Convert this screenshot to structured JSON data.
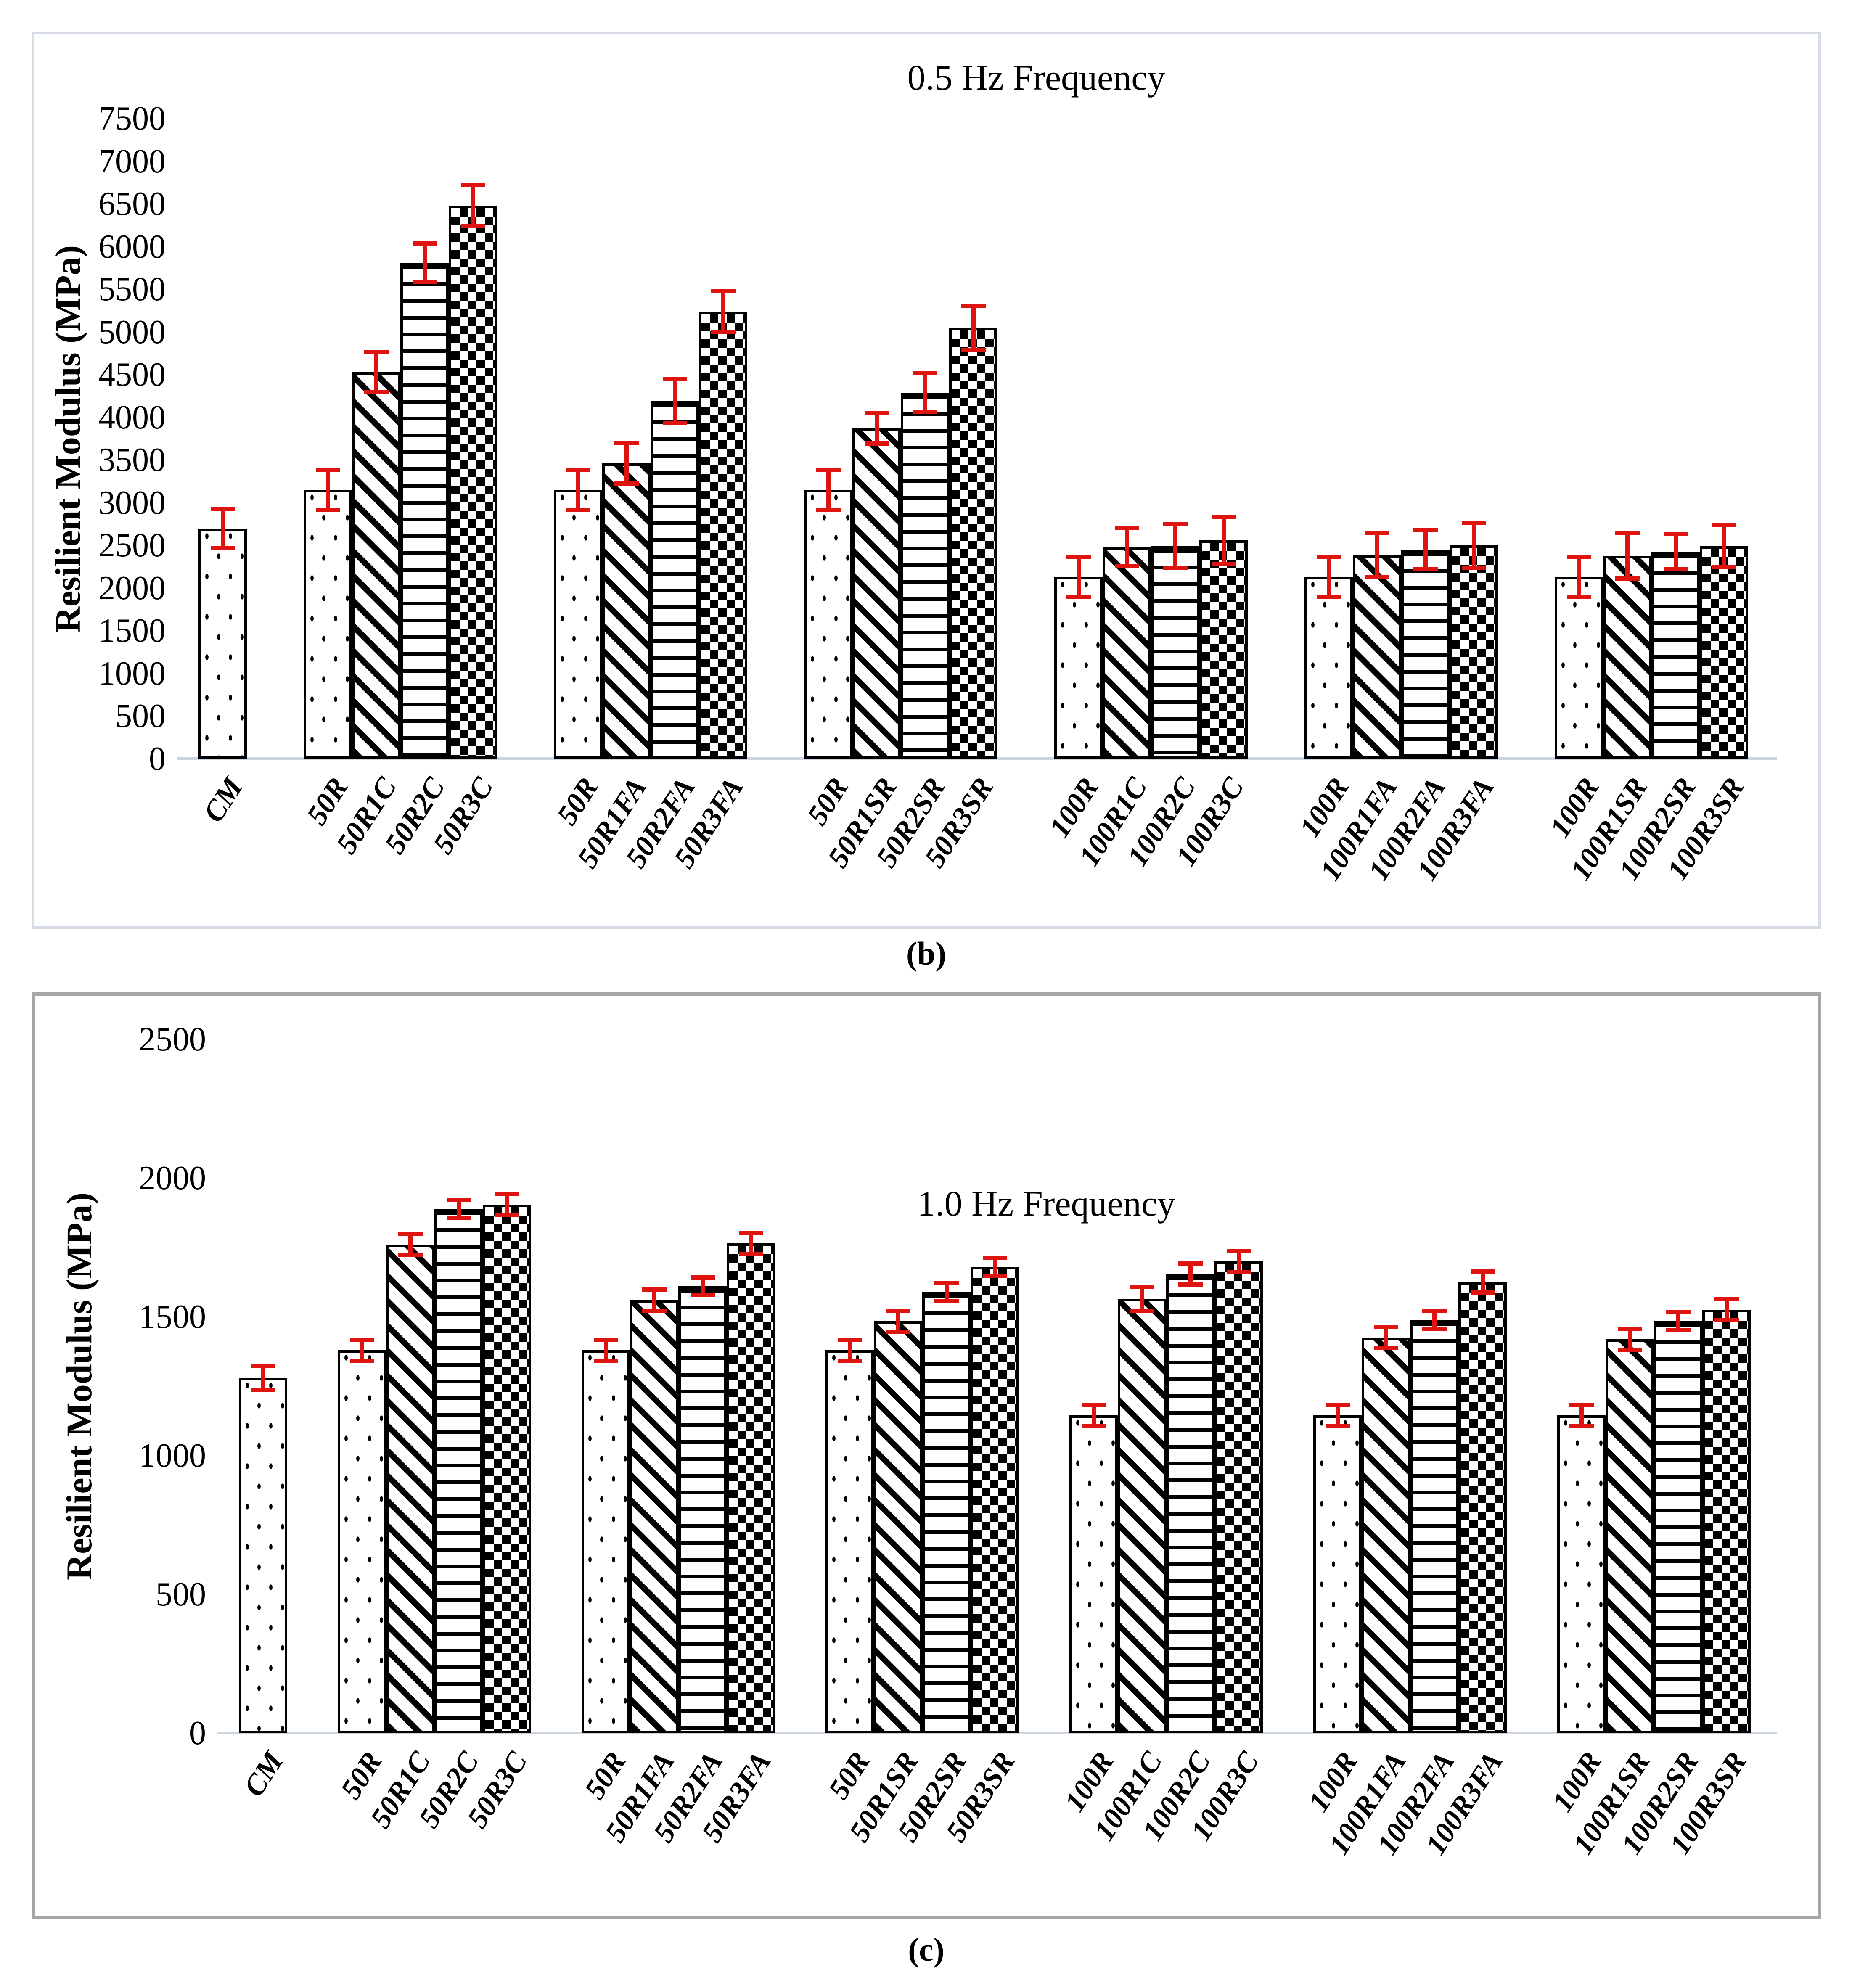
{
  "figure": {
    "error_bar_color": "#df1310",
    "panel_border_colors": [
      "#d5dce6",
      "#a6a6a6"
    ],
    "panels": [
      {
        "caption": "(b)"
      },
      {
        "caption": "(c)"
      }
    ]
  },
  "chart_data": [
    {
      "type": "bar",
      "title": "0.5 Hz Frequency",
      "xlabel": "",
      "ylabel": "Resilient Modulus (MPa)",
      "ylim": [
        0,
        7500
      ],
      "ytick_step": 500,
      "grid": false,
      "legend": false,
      "error_bars": true,
      "bar_patterns": [
        "dotted",
        "diagonal-stripe",
        "horizontal-stripe",
        "checkerboard"
      ],
      "groups": [
        {
          "labels": [
            "CM"
          ],
          "values": [
            2700
          ],
          "errors": [
            250
          ]
        },
        {
          "labels": [
            "50R",
            "50R1C",
            "50R2C",
            "50R3C"
          ],
          "values": [
            3150,
            4530,
            5810,
            6480
          ],
          "errors": [
            260,
            255,
            250,
            265
          ]
        },
        {
          "labels": [
            "50R",
            "50R1FA",
            "50R2FA",
            "50R3FA"
          ],
          "values": [
            3150,
            3460,
            4190,
            5240
          ],
          "errors": [
            260,
            260,
            280,
            265
          ]
        },
        {
          "labels": [
            "50R",
            "50R1SR",
            "50R2SR",
            "50R3SR"
          ],
          "values": [
            3150,
            3870,
            4290,
            5050
          ],
          "errors": [
            260,
            200,
            250,
            280
          ]
        },
        {
          "labels": [
            "100R",
            "100R1C",
            "100R2C",
            "100R3C"
          ],
          "values": [
            2130,
            2480,
            2490,
            2560
          ],
          "errors": [
            255,
            250,
            280,
            300
          ]
        },
        {
          "labels": [
            "100R",
            "100R1FA",
            "100R2FA",
            "100R3FA"
          ],
          "values": [
            2130,
            2390,
            2450,
            2500
          ],
          "errors": [
            255,
            280,
            250,
            290
          ]
        },
        {
          "labels": [
            "100R",
            "100R1SR",
            "100R2SR",
            "100R3SR"
          ],
          "values": [
            2130,
            2380,
            2430,
            2490
          ],
          "errors": [
            255,
            290,
            230,
            270
          ]
        }
      ]
    },
    {
      "type": "bar",
      "title": "1.0 Hz Frequency",
      "xlabel": "",
      "ylabel": "Resilient Modulus (MPa)",
      "ylim": [
        0,
        2500
      ],
      "ytick_step": 500,
      "grid": false,
      "legend": false,
      "error_bars": true,
      "bar_patterns": [
        "dotted",
        "diagonal-stripe",
        "horizontal-stripe",
        "checkerboard"
      ],
      "groups": [
        {
          "labels": [
            "CM"
          ],
          "values": [
            1280
          ],
          "errors": [
            50
          ]
        },
        {
          "labels": [
            "50R",
            "50R1C",
            "50R2C",
            "50R3C"
          ],
          "values": [
            1380,
            1760,
            1890,
            1905
          ],
          "errors": [
            45,
            45,
            40,
            45
          ]
        },
        {
          "labels": [
            "50R",
            "50R1FA",
            "50R2FA",
            "50R3FA"
          ],
          "values": [
            1380,
            1560,
            1610,
            1765
          ],
          "errors": [
            45,
            45,
            40,
            45
          ]
        },
        {
          "labels": [
            "50R",
            "50R1SR",
            "50R2SR",
            "50R3SR"
          ],
          "values": [
            1380,
            1485,
            1590,
            1680
          ],
          "errors": [
            45,
            45,
            40,
            40
          ]
        },
        {
          "labels": [
            "100R",
            "100R1C",
            "100R2C",
            "100R3C"
          ],
          "values": [
            1145,
            1565,
            1655,
            1700
          ],
          "errors": [
            45,
            50,
            45,
            45
          ]
        },
        {
          "labels": [
            "100R",
            "100R1FA",
            "100R2FA",
            "100R3FA"
          ],
          "values": [
            1145,
            1425,
            1490,
            1625
          ],
          "errors": [
            45,
            45,
            40,
            45
          ]
        },
        {
          "labels": [
            "100R",
            "100R1SR",
            "100R2SR",
            "100R3SR"
          ],
          "values": [
            1145,
            1420,
            1485,
            1525
          ],
          "errors": [
            45,
            45,
            40,
            45
          ]
        }
      ]
    }
  ]
}
